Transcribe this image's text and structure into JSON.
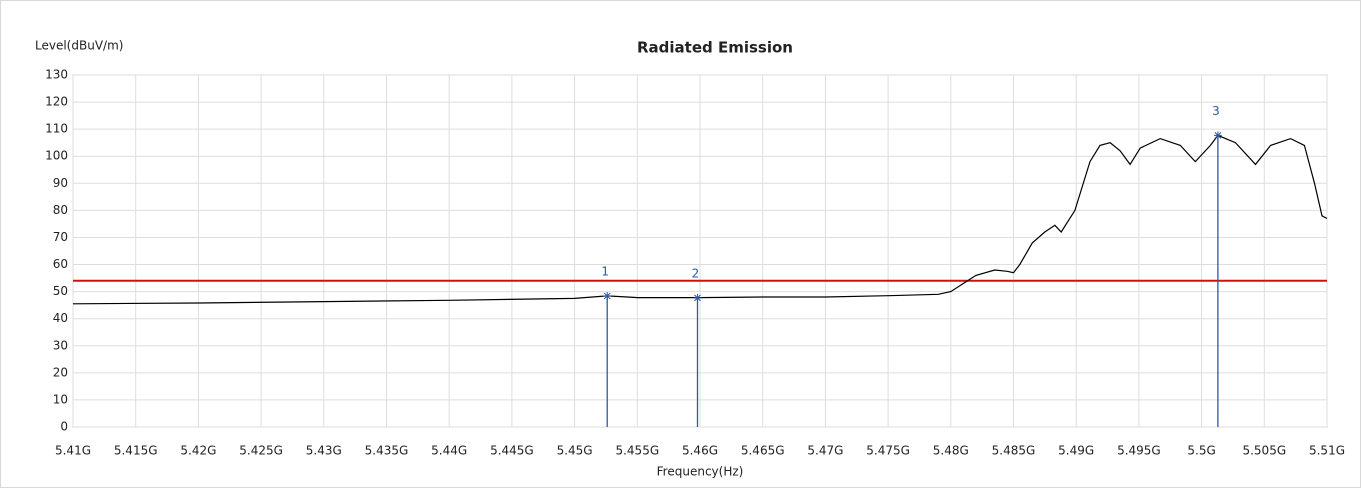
{
  "chart_data": {
    "type": "line",
    "title": "Radiated Emission",
    "y_label": "Level(dBuV/m)",
    "x_label": "Frequency(Hz)",
    "xlim": [
      5410000000,
      5510000000
    ],
    "ylim": [
      0,
      130
    ],
    "yticks": [
      0,
      10,
      20,
      30,
      40,
      50,
      60,
      70,
      80,
      90,
      100,
      110,
      120,
      130
    ],
    "xticks": [
      {
        "value": 5410000000,
        "label": "5.41G"
      },
      {
        "value": 5415000000,
        "label": "5.415G"
      },
      {
        "value": 5420000000,
        "label": "5.42G"
      },
      {
        "value": 5425000000,
        "label": "5.425G"
      },
      {
        "value": 5430000000,
        "label": "5.43G"
      },
      {
        "value": 5435000000,
        "label": "5.435G"
      },
      {
        "value": 5440000000,
        "label": "5.44G"
      },
      {
        "value": 5445000000,
        "label": "5.445G"
      },
      {
        "value": 5450000000,
        "label": "5.45G"
      },
      {
        "value": 5455000000,
        "label": "5.455G"
      },
      {
        "value": 5460000000,
        "label": "5.46G"
      },
      {
        "value": 5465000000,
        "label": "5.465G"
      },
      {
        "value": 5470000000,
        "label": "5.47G"
      },
      {
        "value": 5475000000,
        "label": "5.475G"
      },
      {
        "value": 5480000000,
        "label": "5.48G"
      },
      {
        "value": 5485000000,
        "label": "5.485G"
      },
      {
        "value": 5490000000,
        "label": "5.49G"
      },
      {
        "value": 5495000000,
        "label": "5.495G"
      },
      {
        "value": 5500000000,
        "label": "5.5G"
      },
      {
        "value": 5505000000,
        "label": "5.505G"
      },
      {
        "value": 5510000000,
        "label": "5.51G"
      }
    ],
    "grid": true,
    "series": [
      {
        "color": "#000000",
        "x": [
          5410000000,
          5420000000,
          5430000000,
          5440000000,
          5450000000,
          5452600000,
          5455000000,
          5460000000,
          5465000000,
          5470000000,
          5475000000,
          5479000000,
          5480000000,
          5481000000,
          5482000000,
          5483500000,
          5484500000,
          5485000000,
          5485500000,
          5486500000,
          5487500000,
          5488300000,
          5488800000,
          5489900000,
          5491100000,
          5491900000,
          5492700000,
          5493500000,
          5494300000,
          5495100000,
          5496700000,
          5498300000,
          5499500000,
          5500700000,
          5501300000,
          5502700000,
          5504300000,
          5505500000,
          5507100000,
          5508200000,
          5509000000,
          5509600000,
          5510000000
        ],
        "values": [
          45.5,
          45.8,
          46.3,
          46.8,
          47.5,
          48.4,
          47.8,
          47.8,
          48,
          48,
          48.5,
          49,
          50,
          53,
          56,
          58,
          57.5,
          57,
          60,
          68,
          72,
          74.5,
          72,
          80,
          98,
          104,
          105,
          102,
          97,
          103,
          106.5,
          104,
          98,
          104,
          107.7,
          105,
          97,
          104,
          106.5,
          104,
          90,
          78,
          77
        ]
      }
    ],
    "limit_line": {
      "value": 54,
      "color": "#d01010"
    },
    "markers_color": "#2a5aa0",
    "markers": [
      {
        "label": "1",
        "x": 5452600000,
        "y": 48.4
      },
      {
        "label": "2",
        "x": 5459800000,
        "y": 47.7
      },
      {
        "label": "3",
        "x": 5501300000,
        "y": 107.7
      }
    ]
  }
}
